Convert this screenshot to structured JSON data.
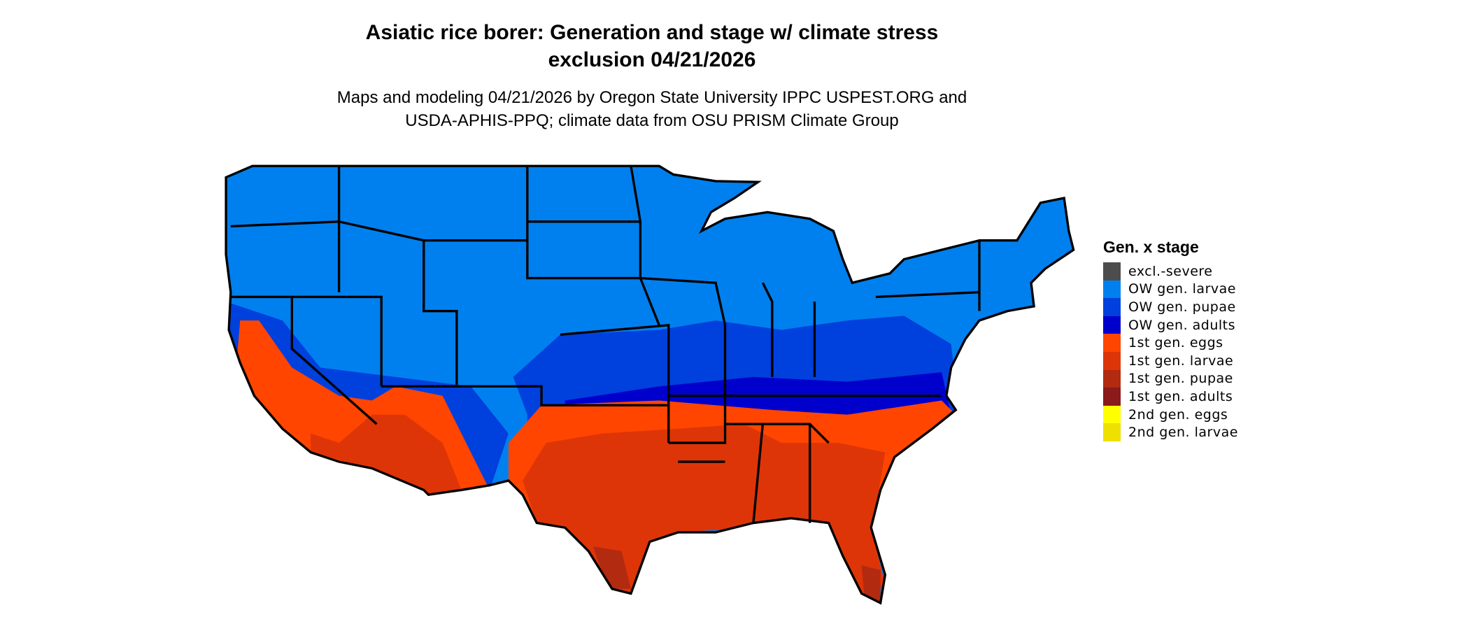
{
  "title": {
    "line1": "Asiatic rice borer: Generation and stage w/ climate stress",
    "line2": "exclusion 04/21/2026"
  },
  "subtitle": {
    "line1": "Maps and modeling 04/21/2026 by Oregon State University IPPC USPEST.ORG and",
    "line2": "USDA-APHIS-PPQ; climate data from OSU PRISM Climate Group"
  },
  "legend": {
    "title": "Gen. x stage",
    "items": [
      {
        "label": "excl.-severe",
        "color": "#4d4d4d"
      },
      {
        "label": "OW gen. larvae",
        "color": "#0080ee"
      },
      {
        "label": "OW gen. pupae",
        "color": "#0040dd"
      },
      {
        "label": "OW gen. adults",
        "color": "#0000cc"
      },
      {
        "label": "1st gen. eggs",
        "color": "#ff4500"
      },
      {
        "label": "1st gen. larvae",
        "color": "#dd3508"
      },
      {
        "label": "1st gen. pupae",
        "color": "#b22a10"
      },
      {
        "label": "1st gen. adults",
        "color": "#8b1a1a"
      },
      {
        "label": "2nd gen. eggs",
        "color": "#ffff00"
      },
      {
        "label": "2nd gen. larvae",
        "color": "#eee000"
      }
    ]
  }
}
